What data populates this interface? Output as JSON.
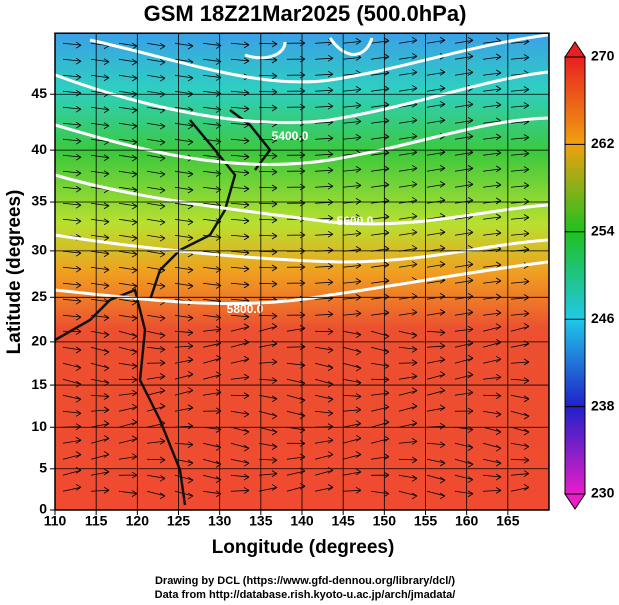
{
  "chart_data": {
    "type": "field-map",
    "title": "GSM 18Z21Mar2025 (500.0hPa)",
    "x_label": "Longitude (degrees)",
    "y_label": "Latitude  (degrees)",
    "projection": "mercator",
    "xlim": [
      110,
      170
    ],
    "ylim": [
      0,
      50
    ],
    "xticks": [
      110,
      115,
      120,
      125,
      130,
      135,
      140,
      145,
      150,
      155,
      160,
      165
    ],
    "yticks": [
      0,
      5,
      10,
      15,
      20,
      25,
      30,
      35,
      40,
      45
    ],
    "grid": true,
    "contour_labels": [
      "5400.0",
      "5600.0",
      "5800.0"
    ],
    "colorbar": {
      "lim": [
        230,
        270
      ],
      "ticks": [
        230,
        238,
        246,
        254,
        262,
        270
      ],
      "colors": [
        "#e81ec8",
        "#2020c8",
        "#20c8e8",
        "#20c020",
        "#f0a010",
        "#e82020"
      ]
    },
    "footer": [
      "Drawing by DCL (https://www.gfd-dennou.org/library/dcl/)",
      "Data from http://database.rish.kyoto-u.ac.jp/arch/jmadata/"
    ]
  }
}
